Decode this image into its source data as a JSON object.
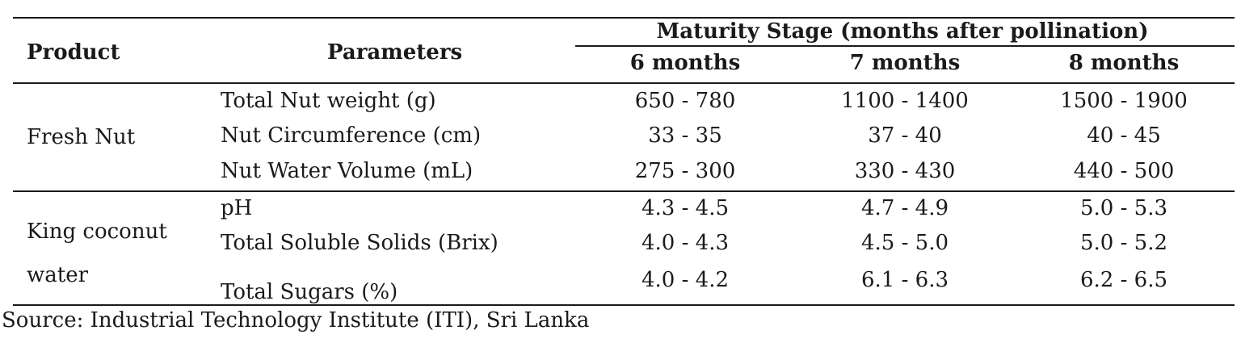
{
  "table": {
    "header": {
      "product": "Product",
      "parameters": "Parameters",
      "group": "Maturity Stage (months after pollination)",
      "stages": [
        "6 months",
        "7 months",
        "8 months"
      ]
    },
    "groups": [
      {
        "product": "Fresh Nut",
        "rows": [
          {
            "parameter": "Total Nut weight (g)",
            "values": [
              "650 - 780",
              "1100 - 1400",
              "1500 - 1900"
            ]
          },
          {
            "parameter": "Nut Circumference (cm)",
            "values": [
              "33 - 35",
              "37 - 40",
              "40 - 45"
            ]
          },
          {
            "parameter": "Nut Water Volume (mL)",
            "values": [
              "275 - 300",
              "330 - 430",
              "440 - 500"
            ]
          }
        ]
      },
      {
        "product_line1": "King coconut",
        "product_line2": "water",
        "rows": [
          {
            "parameter": "pH",
            "values": [
              "4.3 - 4.5",
              "4.7 - 4.9",
              "5.0 - 5.3"
            ]
          },
          {
            "parameter": "Total Soluble Solids (Brix)",
            "values": [
              "4.0 - 4.3",
              "4.5 - 5.0",
              "5.0 - 5.2"
            ]
          },
          {
            "parameter": "Total Sugars (%)",
            "values": [
              "4.0 - 4.2",
              "6.1 - 6.3",
              "6.2 - 6.5"
            ]
          }
        ]
      }
    ]
  },
  "source": "Source: Industrial Technology Institute (ITI), Sri Lanka"
}
